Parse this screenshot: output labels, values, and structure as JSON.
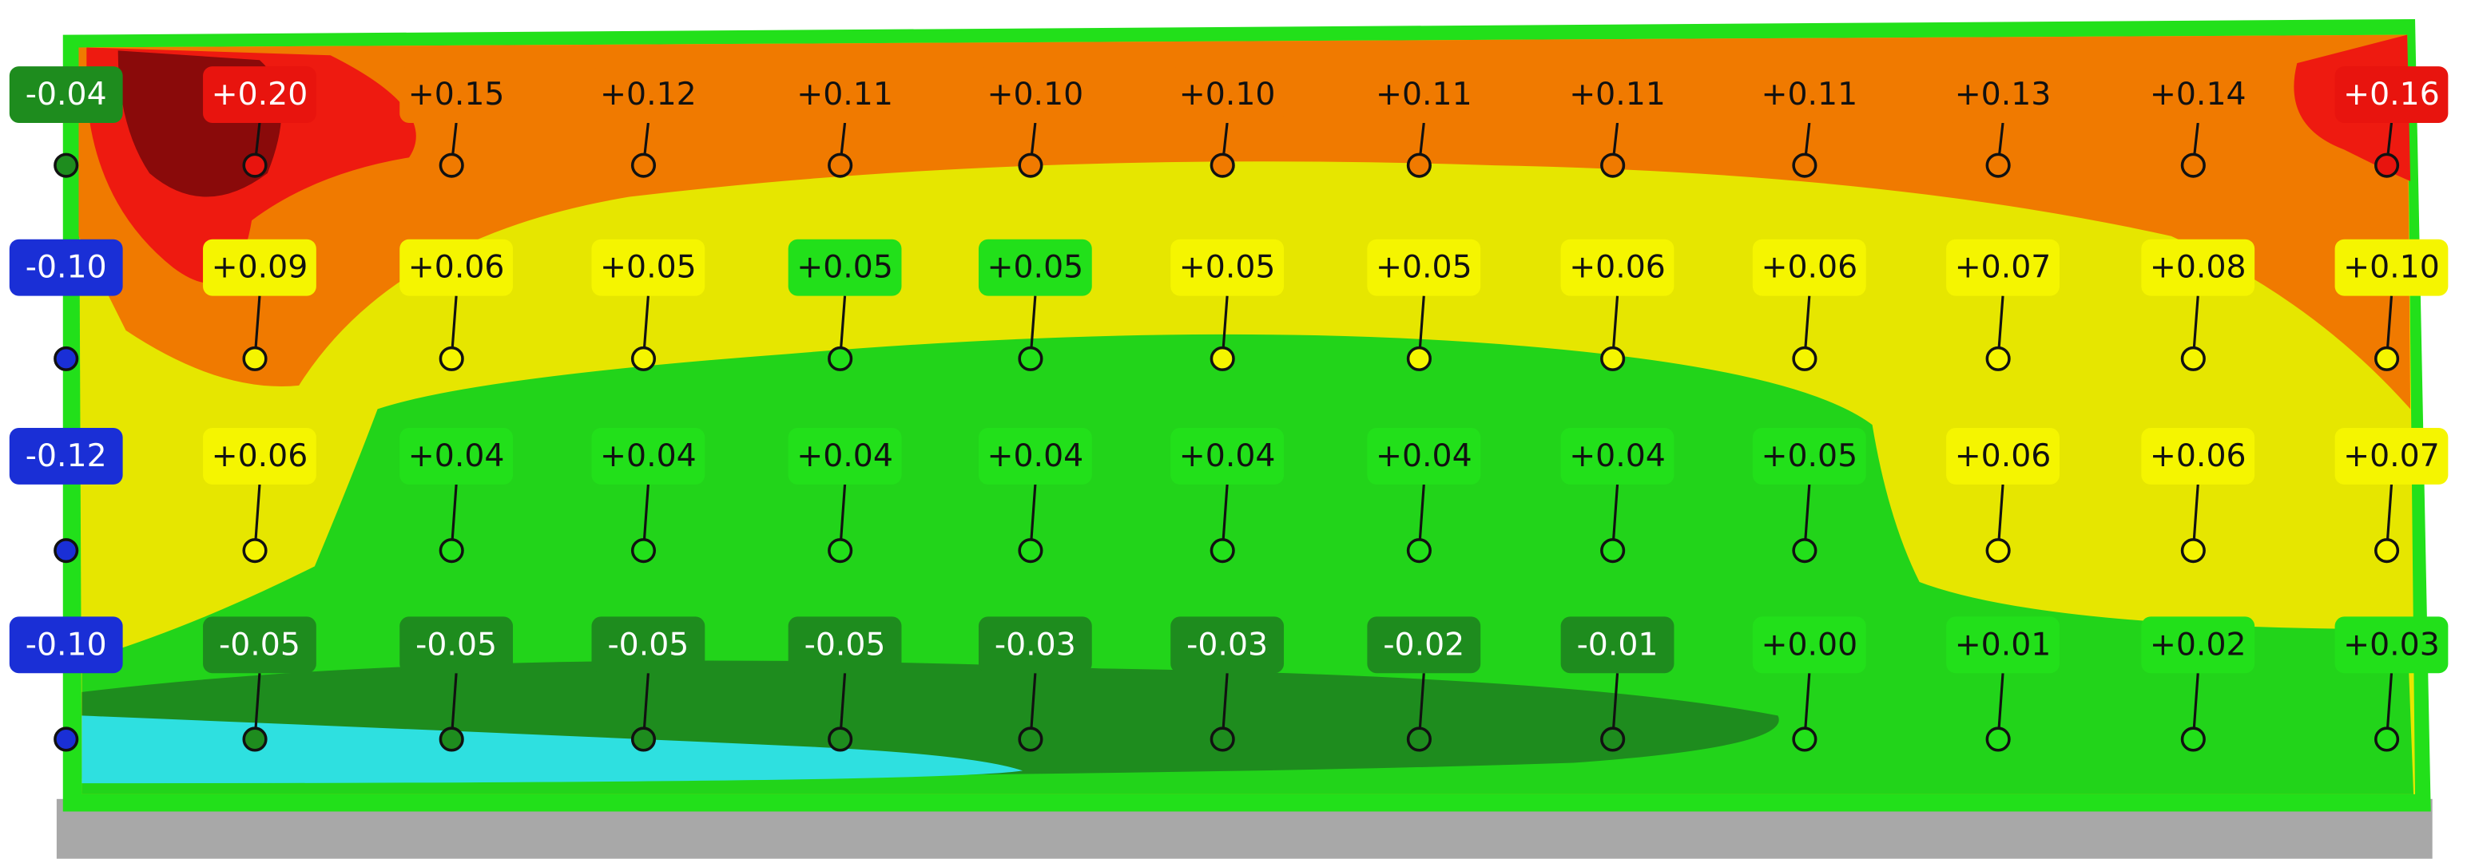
{
  "rows": [
    [
      {
        "text": "-0.04",
        "color": "#1e8c1e"
      },
      {
        "text": "+0.20",
        "color": "#e8140e"
      },
      {
        "text": "+0.15",
        "color": "#f07a00"
      },
      {
        "text": "+0.12",
        "color": "#f07a00"
      },
      {
        "text": "+0.11",
        "color": "#f07a00"
      },
      {
        "text": "+0.10",
        "color": "#f07a00"
      },
      {
        "text": "+0.10",
        "color": "#f07a00"
      },
      {
        "text": "+0.11",
        "color": "#f07a00"
      },
      {
        "text": "+0.11",
        "color": "#f07a00"
      },
      {
        "text": "+0.11",
        "color": "#f07a00"
      },
      {
        "text": "+0.13",
        "color": "#f07a00"
      },
      {
        "text": "+0.14",
        "color": "#f07a00"
      },
      {
        "text": "+0.16",
        "color": "#e8140e"
      }
    ],
    [
      {
        "text": "-0.10",
        "color": "#1a2fd6"
      },
      {
        "text": "+0.09",
        "color": "#f5f500"
      },
      {
        "text": "+0.06",
        "color": "#f5f500"
      },
      {
        "text": "+0.05",
        "color": "#f5f500"
      },
      {
        "text": "+0.05",
        "color": "#22e01a"
      },
      {
        "text": "+0.05",
        "color": "#22e01a"
      },
      {
        "text": "+0.05",
        "color": "#f5f500"
      },
      {
        "text": "+0.05",
        "color": "#f5f500"
      },
      {
        "text": "+0.06",
        "color": "#f5f500"
      },
      {
        "text": "+0.06",
        "color": "#f5f500"
      },
      {
        "text": "+0.07",
        "color": "#f5f500"
      },
      {
        "text": "+0.08",
        "color": "#f5f500"
      },
      {
        "text": "+0.10",
        "color": "#f5f500"
      }
    ],
    [
      {
        "text": "-0.12",
        "color": "#1a2fd6"
      },
      {
        "text": "+0.06",
        "color": "#f5f500"
      },
      {
        "text": "+0.04",
        "color": "#22e01a"
      },
      {
        "text": "+0.04",
        "color": "#22e01a"
      },
      {
        "text": "+0.04",
        "color": "#22e01a"
      },
      {
        "text": "+0.04",
        "color": "#22e01a"
      },
      {
        "text": "+0.04",
        "color": "#22e01a"
      },
      {
        "text": "+0.04",
        "color": "#22e01a"
      },
      {
        "text": "+0.04",
        "color": "#22e01a"
      },
      {
        "text": "+0.05",
        "color": "#22e01a"
      },
      {
        "text": "+0.06",
        "color": "#f5f500"
      },
      {
        "text": "+0.06",
        "color": "#f5f500"
      },
      {
        "text": "+0.07",
        "color": "#f5f500"
      }
    ],
    [
      {
        "text": "-0.10",
        "color": "#1a2fd6"
      },
      {
        "text": "-0.05",
        "color": "#1e8c1e"
      },
      {
        "text": "-0.05",
        "color": "#1e8c1e"
      },
      {
        "text": "-0.05",
        "color": "#1e8c1e"
      },
      {
        "text": "-0.05",
        "color": "#1e8c1e"
      },
      {
        "text": "-0.03",
        "color": "#1e8c1e"
      },
      {
        "text": "-0.03",
        "color": "#1e8c1e"
      },
      {
        "text": "-0.02",
        "color": "#1e8c1e"
      },
      {
        "text": "-0.01",
        "color": "#1e8c1e"
      },
      {
        "text": "+0.00",
        "color": "#22e01a"
      },
      {
        "text": "+0.01",
        "color": "#22e01a"
      },
      {
        "text": "+0.02",
        "color": "#22e01a"
      },
      {
        "text": "+0.03",
        "color": "#22e01a"
      }
    ]
  ]
}
